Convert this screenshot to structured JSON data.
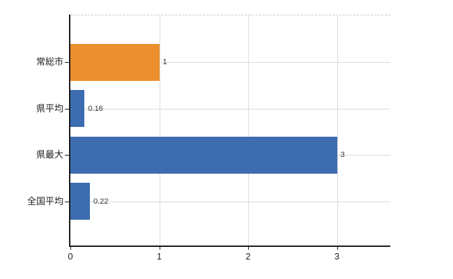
{
  "chart_data": {
    "type": "bar",
    "orientation": "horizontal",
    "title": "",
    "categories": [
      "常総市",
      "県平均",
      "県最大",
      "全国平均"
    ],
    "values": [
      1,
      0.16,
      3,
      0.22
    ],
    "value_labels": [
      "1",
      "0.16",
      "3",
      "0.22"
    ],
    "bar_colors": [
      "#EC8F2E",
      "#3D6CB1",
      "#3D6CB1",
      "#3D6CB1"
    ],
    "xlim": [
      0,
      3.6
    ],
    "x_ticks": [
      0,
      1,
      2,
      3
    ],
    "x_tick_labels": [
      "0",
      "1",
      "2",
      "3"
    ],
    "xlabel": "",
    "ylabel": "",
    "legend": null,
    "grid": true
  },
  "colors": {
    "highlight_bar": "#EC8F2E",
    "default_bar": "#3D6CB1",
    "vertical_grid": "#DCDCDC",
    "horizontal_grid": "#D9DDD4",
    "axis": "#1A1A1A",
    "background": "#FFFFFF",
    "text": "#222222"
  }
}
